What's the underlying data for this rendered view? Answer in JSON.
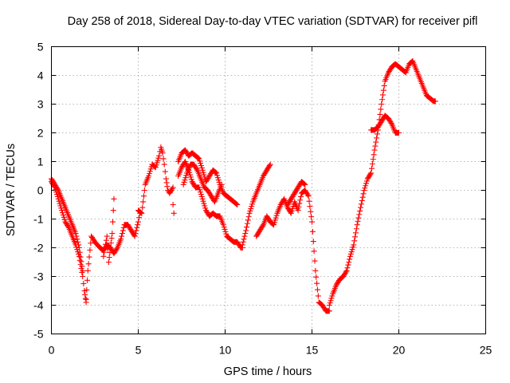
{
  "chart_data": {
    "type": "scatter",
    "title": "Day 258 of 2018, Sidereal Day-to-day VTEC variation (SDTVAR) for receiver pifl",
    "xlabel": "GPS time / hours",
    "ylabel": "SDTVAR / TECUs",
    "xlim": [
      0,
      25
    ],
    "ylim": [
      -5,
      5
    ],
    "xticks": [
      0,
      5,
      10,
      15,
      20,
      25
    ],
    "yticks": [
      -5,
      -4,
      -3,
      -2,
      -1,
      0,
      1,
      2,
      3,
      4,
      5
    ],
    "grid": true,
    "marker": "+",
    "color": "#ff0000",
    "series": [
      {
        "name": "pifl",
        "segments": [
          {
            "x": [
              0.0,
              0.2,
              0.4,
              0.6,
              0.8,
              1.0,
              1.2,
              1.4,
              1.6,
              1.8,
              1.9,
              2.0
            ],
            "y": [
              0.3,
              0.1,
              -0.3,
              -0.7,
              -1.1,
              -1.3,
              -1.6,
              -1.9,
              -2.3,
              -3.0,
              -3.5,
              -3.9
            ]
          },
          {
            "x": [
              0.0,
              0.2,
              0.4,
              0.6,
              0.8,
              1.0,
              1.2,
              1.4,
              1.6,
              1.8
            ],
            "y": [
              0.4,
              0.2,
              0.0,
              -0.3,
              -0.6,
              -0.9,
              -1.2,
              -1.5,
              -2.0,
              -2.8
            ]
          },
          {
            "x": [
              2.0,
              2.1,
              2.3,
              2.5,
              2.8,
              3.0,
              3.2,
              3.4,
              3.6,
              3.8,
              4.0,
              4.2,
              4.4,
              4.6,
              4.8,
              5.0,
              5.1
            ],
            "y": [
              -3.8,
              -2.8,
              -1.6,
              -1.8,
              -2.0,
              -2.1,
              -1.9,
              -2.0,
              -2.2,
              -2.0,
              -1.7,
              -1.2,
              -1.2,
              -1.4,
              -1.6,
              -1.1,
              -0.8
            ]
          },
          {
            "x": [
              3.0,
              3.2,
              3.3,
              3.4,
              3.5,
              3.6
            ],
            "y": [
              -2.3,
              -1.6,
              -2.5,
              -2.0,
              -1.5,
              -0.3
            ]
          },
          {
            "x": [
              5.0,
              5.2,
              5.4,
              5.6,
              5.8,
              6.0,
              6.2,
              6.3,
              6.4,
              6.5,
              6.6,
              6.7,
              6.8,
              6.9,
              7.0
            ],
            "y": [
              -0.7,
              -0.8,
              0.2,
              0.5,
              0.9,
              0.8,
              1.2,
              1.5,
              1.3,
              0.9,
              0.4,
              0.0,
              -0.1,
              0.0,
              0.1
            ]
          },
          {
            "x": [
              7.0,
              7.05
            ],
            "y": [
              -0.5,
              -0.8
            ]
          },
          {
            "x": [
              7.3,
              7.5,
              7.7,
              7.9,
              8.1,
              8.3,
              8.5,
              8.7,
              8.9,
              9.1,
              9.3,
              9.5,
              9.7,
              9.9,
              10.1,
              10.3,
              10.5,
              10.7
            ],
            "y": [
              1.0,
              1.3,
              1.4,
              1.2,
              1.3,
              1.2,
              1.1,
              0.7,
              0.3,
              0.5,
              0.7,
              0.6,
              0.2,
              -0.1,
              -0.2,
              -0.3,
              -0.4,
              -0.5
            ]
          },
          {
            "x": [
              7.3,
              7.5,
              7.7,
              7.9,
              8.1,
              8.3,
              8.5,
              8.7,
              8.9,
              9.1,
              9.3,
              9.5,
              9.7,
              9.9,
              10.1,
              10.3,
              10.5,
              10.7,
              10.9,
              11.0
            ],
            "y": [
              0.5,
              0.8,
              1.0,
              0.7,
              0.3,
              0.1,
              0.1,
              -0.3,
              -0.7,
              -0.9,
              -0.8,
              -0.9,
              -0.9,
              -1.2,
              -1.6,
              -1.7,
              -1.8,
              -1.8,
              -2.0,
              -2.0
            ]
          },
          {
            "x": [
              7.6,
              7.8,
              8.0,
              8.2,
              8.4,
              8.6,
              8.8,
              9.0,
              9.2,
              9.4,
              9.6,
              9.8
            ],
            "y": [
              0.2,
              0.6,
              0.9,
              0.9,
              0.7,
              0.4,
              0.1,
              0.0,
              -0.2,
              -0.4,
              -0.1,
              0.2
            ]
          },
          {
            "x": [
              11.0,
              11.2,
              11.4,
              11.6,
              11.8,
              12.0,
              12.2,
              12.4,
              12.6
            ],
            "y": [
              -1.9,
              -1.4,
              -0.8,
              -0.4,
              -0.1,
              0.2,
              0.5,
              0.7,
              0.9
            ]
          },
          {
            "x": [
              11.8,
              12.0,
              12.2,
              12.4,
              12.6,
              12.8,
              13.0,
              13.2,
              13.4,
              13.6,
              13.8,
              14.0,
              14.2,
              14.4,
              14.6,
              14.8,
              15.0,
              15.2,
              15.4,
              15.6,
              15.8,
              16.0
            ],
            "y": [
              -1.6,
              -1.4,
              -1.2,
              -0.9,
              -1.1,
              -1.2,
              -0.8,
              -0.5,
              -0.3,
              -0.6,
              -0.8,
              -0.4,
              -0.7,
              -0.1,
              0.0,
              -0.2,
              -1.1,
              -2.8,
              -3.9,
              -4.0,
              -4.2,
              -4.2
            ]
          },
          {
            "x": [
              13.6,
              13.8,
              14.0,
              14.2,
              14.4,
              14.6
            ],
            "y": [
              -0.5,
              -0.3,
              -0.1,
              0.1,
              0.3,
              0.2
            ]
          },
          {
            "x": [
              16.0,
              16.2,
              16.4,
              16.6,
              16.8,
              17.0,
              17.2,
              17.4,
              17.6,
              17.8,
              18.0,
              18.2,
              18.4,
              18.6,
              18.8,
              19.0,
              19.2,
              19.4,
              19.6,
              19.8,
              20.0,
              20.2,
              20.4,
              20.6,
              20.8,
              21.0,
              21.2,
              21.4,
              21.6,
              21.8,
              22.0,
              22.1
            ],
            "y": [
              -4.0,
              -3.6,
              -3.3,
              -3.1,
              -3.0,
              -2.8,
              -2.3,
              -1.9,
              -1.2,
              -0.6,
              0.0,
              0.4,
              0.6,
              1.4,
              2.1,
              3.0,
              3.8,
              4.1,
              4.3,
              4.4,
              4.3,
              4.2,
              4.1,
              4.4,
              4.5,
              4.2,
              3.9,
              3.6,
              3.3,
              3.2,
              3.1,
              3.1
            ]
          },
          {
            "x": [
              18.4,
              18.6,
              18.8,
              19.0,
              19.2,
              19.4,
              19.6,
              19.8,
              20.0
            ],
            "y": [
              2.1,
              2.1,
              2.2,
              2.4,
              2.6,
              2.5,
              2.3,
              2.0,
              2.0
            ]
          }
        ]
      }
    ]
  }
}
